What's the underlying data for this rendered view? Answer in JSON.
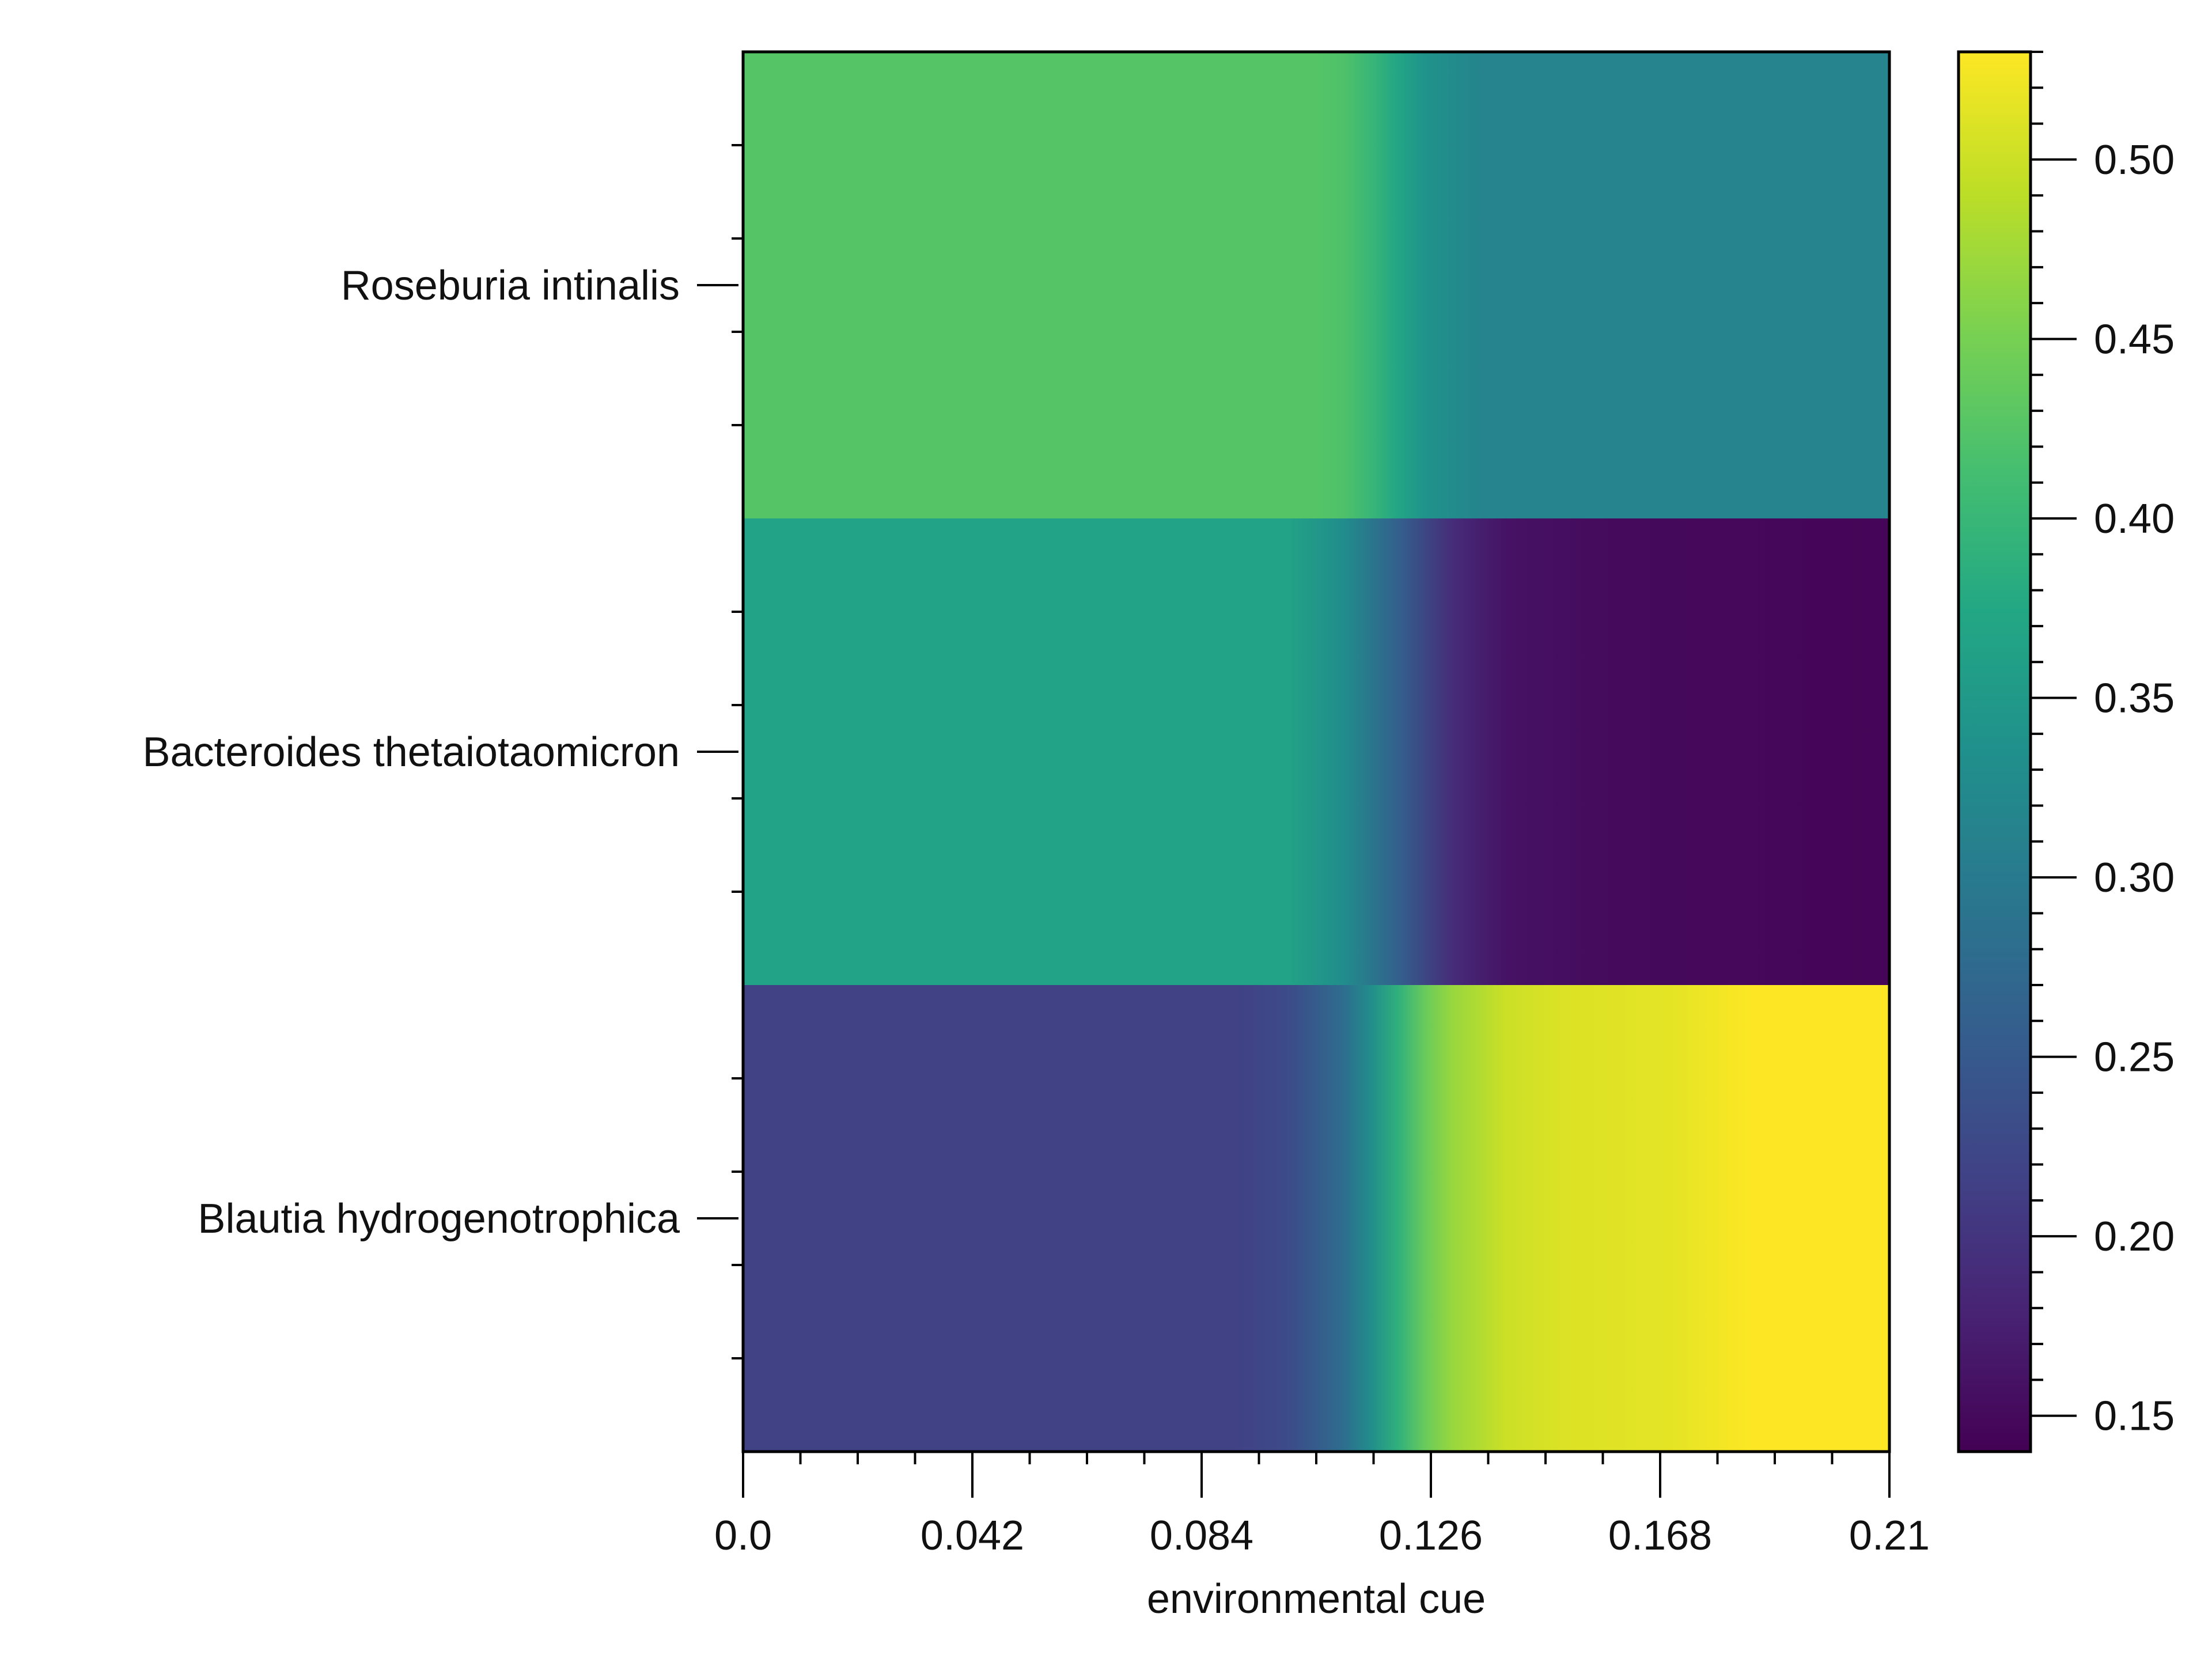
{
  "chart_data": {
    "type": "heatmap",
    "title": "",
    "xlabel": "environmental cue",
    "ylabel": "",
    "x_range": [
      0,
      0.21
    ],
    "x_ticks": [
      "0.0",
      "0.042",
      "0.084",
      "0.126",
      "0.168",
      "0.21"
    ],
    "x_tick_values": [
      0,
      0.042,
      0.084,
      0.126,
      0.168,
      0.21
    ],
    "rows": [
      {
        "name": "Roseburia intinalis",
        "x": [
          0.0,
          0.105,
          0.11,
          0.115,
          0.12,
          0.125,
          0.135,
          0.21
        ],
        "values": [
          0.425,
          0.425,
          0.42,
          0.4,
          0.37,
          0.34,
          0.315,
          0.315
        ]
      },
      {
        "name": "Bacteroides thetaiotaomicron",
        "x": [
          0.0,
          0.1,
          0.11,
          0.12,
          0.13,
          0.14,
          0.16,
          0.21
        ],
        "values": [
          0.365,
          0.365,
          0.33,
          0.26,
          0.19,
          0.16,
          0.15,
          0.145
        ]
      },
      {
        "name": "Blautia hydrogenotrophica",
        "x": [
          0.0,
          0.09,
          0.1,
          0.11,
          0.115,
          0.12,
          0.125,
          0.13,
          0.14,
          0.15,
          0.17,
          0.185,
          0.21
        ],
        "values": [
          0.215,
          0.215,
          0.23,
          0.28,
          0.33,
          0.39,
          0.44,
          0.47,
          0.5,
          0.51,
          0.515,
          0.53,
          0.53
        ]
      }
    ],
    "colorbar": {
      "range": [
        0.14,
        0.53
      ],
      "ticks": [
        "0.15",
        "0.20",
        "0.25",
        "0.30",
        "0.35",
        "0.40",
        "0.45",
        "0.50"
      ],
      "tick_values": [
        0.15,
        0.2,
        0.25,
        0.3,
        0.35,
        0.4,
        0.45,
        0.5
      ],
      "colormap": "viridis"
    },
    "grid": false
  }
}
